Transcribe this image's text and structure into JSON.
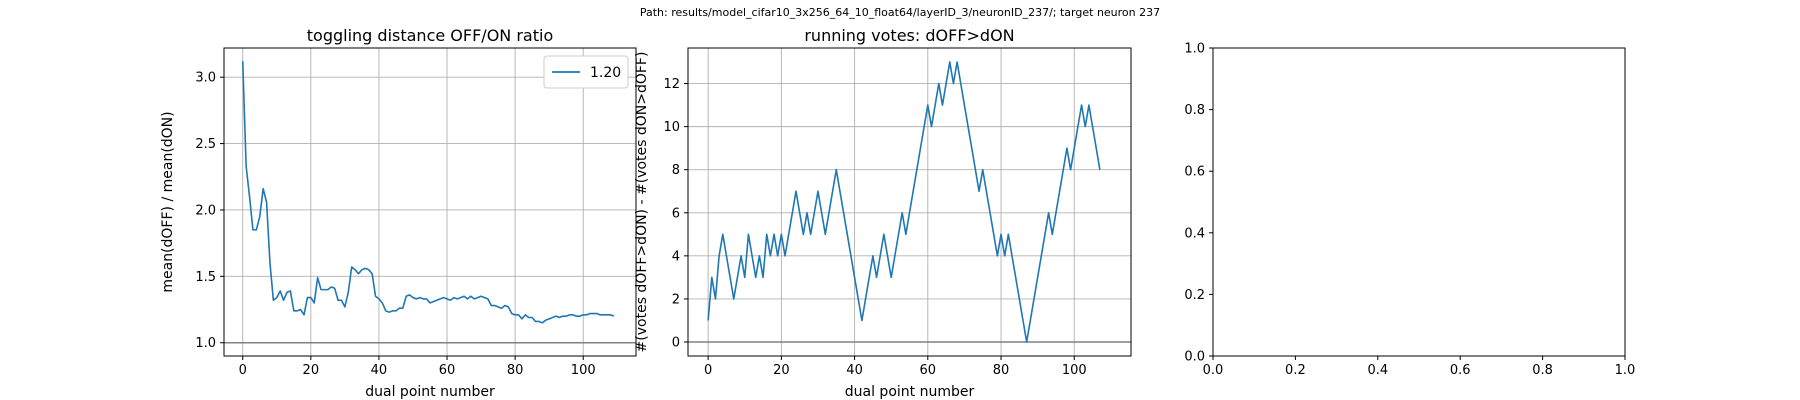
{
  "figure": {
    "suptitle": "Path: results/model_cifar10_3x256_64_10_float64/layerID_3/neuronID_237/; target neuron 237"
  },
  "colors": {
    "series": "#1f77b4",
    "grid": "#b0b0b0",
    "axis": "#000000",
    "hline": "#808080"
  },
  "chart_data": [
    {
      "type": "line",
      "title": "toggling distance OFF/ON ratio",
      "xlabel": "dual point number",
      "ylabel": "mean(dOFF) / mean(dON)",
      "xlim": [
        -5.5,
        115.5
      ],
      "ylim": [
        0.9,
        3.22
      ],
      "xticks": [
        0,
        20,
        40,
        60,
        80,
        100
      ],
      "yticks": [
        1.0,
        1.5,
        2.0,
        2.5,
        3.0
      ],
      "ytick_labels": [
        "1.0",
        "1.5",
        "2.0",
        "2.5",
        "3.0"
      ],
      "grid": true,
      "hline": 1.0,
      "legend": {
        "position": "upper right",
        "entries": [
          "1.20"
        ]
      },
      "series": [
        {
          "name": "1.20",
          "values": [
            3.12,
            2.33,
            2.1,
            1.85,
            1.85,
            1.95,
            2.16,
            2.06,
            1.6,
            1.32,
            1.34,
            1.39,
            1.32,
            1.38,
            1.39,
            1.24,
            1.24,
            1.25,
            1.21,
            1.34,
            1.34,
            1.3,
            1.49,
            1.4,
            1.4,
            1.4,
            1.42,
            1.41,
            1.32,
            1.32,
            1.27,
            1.38,
            1.57,
            1.55,
            1.52,
            1.55,
            1.56,
            1.55,
            1.52,
            1.35,
            1.33,
            1.3,
            1.24,
            1.23,
            1.24,
            1.24,
            1.26,
            1.26,
            1.35,
            1.36,
            1.34,
            1.33,
            1.34,
            1.33,
            1.33,
            1.3,
            1.31,
            1.32,
            1.33,
            1.34,
            1.33,
            1.32,
            1.34,
            1.33,
            1.34,
            1.35,
            1.33,
            1.35,
            1.33,
            1.34,
            1.35,
            1.34,
            1.33,
            1.28,
            1.28,
            1.27,
            1.26,
            1.28,
            1.27,
            1.22,
            1.21,
            1.21,
            1.18,
            1.21,
            1.19,
            1.19,
            1.16,
            1.16,
            1.15,
            1.17,
            1.18,
            1.19,
            1.2,
            1.19,
            1.2,
            1.2,
            1.21,
            1.21,
            1.2,
            1.2,
            1.21,
            1.21,
            1.22,
            1.22,
            1.22,
            1.21,
            1.21,
            1.21,
            1.21,
            1.2
          ]
        }
      ]
    },
    {
      "type": "line",
      "title": "running votes: dOFF>dON",
      "xlabel": "dual point number",
      "ylabel": "#(votes dOFF>dON) - #(votes dON>dOFF)",
      "xlim": [
        -5.5,
        115.5
      ],
      "ylim": [
        -0.65,
        13.65
      ],
      "xticks": [
        0,
        20,
        40,
        60,
        80,
        100
      ],
      "yticks": [
        0,
        2,
        4,
        6,
        8,
        10,
        12
      ],
      "ytick_labels": [
        "0",
        "2",
        "4",
        "6",
        "8",
        "10",
        "12"
      ],
      "grid": true,
      "hline": 0,
      "series": [
        {
          "values": [
            1,
            3,
            2,
            4,
            5,
            4,
            3,
            2,
            3,
            4,
            3,
            5,
            4,
            3,
            4,
            3,
            5,
            4,
            5,
            4,
            5,
            4,
            5,
            6,
            7,
            6,
            5,
            6,
            5,
            6,
            7,
            6,
            5,
            6,
            7,
            8,
            7,
            6,
            5,
            4,
            3,
            2,
            1,
            2,
            3,
            4,
            3,
            4,
            5,
            4,
            3,
            4,
            5,
            6,
            5,
            6,
            7,
            8,
            9,
            10,
            11,
            10,
            11,
            12,
            11,
            12,
            13,
            12,
            13,
            12,
            11,
            10,
            9,
            8,
            7,
            8,
            7,
            6,
            5,
            4,
            5,
            4,
            5,
            4,
            3,
            2,
            1,
            0,
            1,
            2,
            3,
            4,
            5,
            6,
            5,
            6,
            7,
            8,
            9,
            8,
            9,
            10,
            11,
            10,
            11,
            10,
            9,
            8
          ]
        }
      ]
    },
    {
      "type": "line",
      "title": "",
      "xlabel": "",
      "ylabel": "",
      "xlim": [
        0,
        1
      ],
      "ylim": [
        0,
        1
      ],
      "xticks": [
        0,
        0.2,
        0.4,
        0.6,
        0.8,
        1.0
      ],
      "xtick_labels": [
        "0.0",
        "0.2",
        "0.4",
        "0.6",
        "0.8",
        "1.0"
      ],
      "yticks": [
        0,
        0.2,
        0.4,
        0.6,
        0.8,
        1.0
      ],
      "ytick_labels": [
        "0.0",
        "0.2",
        "0.4",
        "0.6",
        "0.8",
        "1.0"
      ],
      "grid": false,
      "series": []
    }
  ]
}
